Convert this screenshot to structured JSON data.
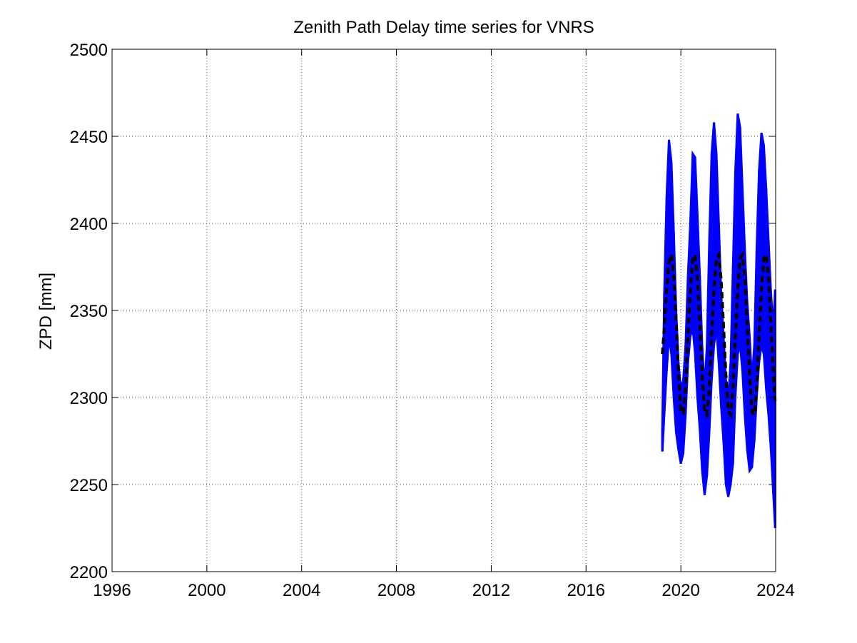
{
  "chart_data": {
    "type": "line",
    "title": "Zenith Path Delay time series for VNRS",
    "xlabel": "",
    "ylabel": "ZPD [mm]",
    "xlim": [
      1996,
      2024
    ],
    "ylim": [
      2200,
      2500
    ],
    "xticks": [
      1996,
      2000,
      2004,
      2008,
      2012,
      2016,
      2020,
      2024
    ],
    "yticks": [
      2200,
      2250,
      2300,
      2350,
      2400,
      2450,
      2500
    ],
    "xtick_labels": [
      "1996",
      "2000",
      "2004",
      "2008",
      "2012",
      "2016",
      "2020",
      "2024"
    ],
    "ytick_labels": [
      "2200",
      "2250",
      "2300",
      "2350",
      "2400",
      "2450",
      "2500"
    ],
    "grid": true,
    "legend": "none",
    "series": [
      {
        "style": "observations",
        "color": "#0000ff",
        "x": [
          2019.22,
          2019.3,
          2019.4,
          2019.5,
          2019.6,
          2019.7,
          2019.8,
          2019.9,
          2020.0,
          2020.1,
          2020.2,
          2020.3,
          2020.4,
          2020.5,
          2020.6,
          2020.7,
          2020.8,
          2020.9,
          2021.0,
          2021.1,
          2021.2,
          2021.3,
          2021.4,
          2021.5,
          2021.6,
          2021.7,
          2021.8,
          2021.9,
          2022.0,
          2022.1,
          2022.2,
          2022.3,
          2022.4,
          2022.5,
          2022.6,
          2022.7,
          2022.8,
          2022.9,
          2023.0,
          2023.1,
          2023.2,
          2023.3,
          2023.4,
          2023.5,
          2023.6,
          2023.7,
          2023.8,
          2023.9,
          2023.98
        ],
        "y_min": [
          2269,
          2290,
          2315,
          2335,
          2325,
          2300,
          2280,
          2270,
          2262,
          2268,
          2290,
          2320,
          2335,
          2340,
          2325,
          2300,
          2282,
          2258,
          2244,
          2255,
          2280,
          2310,
          2330,
          2340,
          2320,
          2295,
          2275,
          2250,
          2243,
          2250,
          2262,
          2300,
          2325,
          2330,
          2315,
          2290,
          2270,
          2258,
          2260,
          2275,
          2300,
          2320,
          2330,
          2325,
          2305,
          2290,
          2270,
          2245,
          2225
        ],
        "y_max": [
          2282,
          2360,
          2415,
          2448,
          2435,
          2395,
          2350,
          2320,
          2305,
          2310,
          2330,
          2370,
          2400,
          2440,
          2438,
          2405,
          2370,
          2330,
          2305,
          2330,
          2390,
          2440,
          2458,
          2440,
          2400,
          2360,
          2335,
          2310,
          2300,
          2320,
          2375,
          2430,
          2463,
          2455,
          2420,
          2385,
          2355,
          2335,
          2310,
          2330,
          2385,
          2430,
          2452,
          2445,
          2420,
          2390,
          2360,
          2340,
          2362
        ]
      },
      {
        "style": "model",
        "color": "#000000",
        "x": [
          2019.22,
          2019.3,
          2019.4,
          2019.5,
          2019.6,
          2019.7,
          2019.8,
          2019.9,
          2020.0,
          2020.1,
          2020.2,
          2020.3,
          2020.4,
          2020.5,
          2020.6,
          2020.7,
          2020.8,
          2020.9,
          2021.0,
          2021.1,
          2021.2,
          2021.3,
          2021.4,
          2021.5,
          2021.6,
          2021.7,
          2021.8,
          2021.9,
          2022.0,
          2022.1,
          2022.2,
          2022.3,
          2022.4,
          2022.5,
          2022.6,
          2022.7,
          2022.8,
          2022.9,
          2023.0,
          2023.1,
          2023.2,
          2023.3,
          2023.4,
          2023.5,
          2023.6,
          2023.7,
          2023.8,
          2023.9,
          2023.98
        ],
        "y": [
          2325,
          2340,
          2362,
          2378,
          2382,
          2370,
          2345,
          2315,
          2292,
          2291,
          2305,
          2335,
          2362,
          2380,
          2382,
          2368,
          2342,
          2313,
          2292,
          2290,
          2305,
          2335,
          2362,
          2380,
          2382,
          2368,
          2342,
          2313,
          2292,
          2290,
          2305,
          2335,
          2362,
          2380,
          2382,
          2368,
          2342,
          2313,
          2292,
          2290,
          2305,
          2335,
          2362,
          2380,
          2382,
          2368,
          2342,
          2313,
          2298
        ]
      }
    ]
  }
}
